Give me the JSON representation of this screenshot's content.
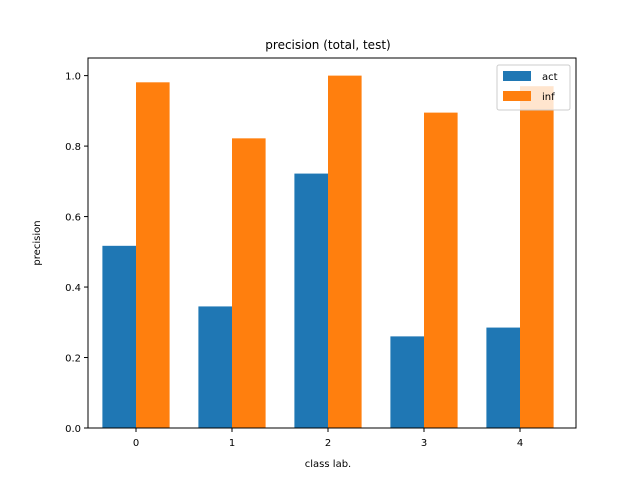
{
  "chart_data": {
    "type": "bar",
    "title": "precision (total, test)",
    "xlabel": "class lab.",
    "ylabel": "precision",
    "categories": [
      "0",
      "1",
      "2",
      "3",
      "4"
    ],
    "ylim": [
      0,
      1.05
    ],
    "yticks": [
      "0.0",
      "0.2",
      "0.4",
      "0.6",
      "0.8",
      "1.0"
    ],
    "grid": false,
    "legend_position": "top-right",
    "series": [
      {
        "name": "act",
        "color": "#1f77b4",
        "values": [
          0.517,
          0.345,
          0.722,
          0.26,
          0.285
        ]
      },
      {
        "name": "inf",
        "color": "#ff7f0e",
        "values": [
          0.981,
          0.822,
          1.0,
          0.895,
          0.97
        ]
      }
    ]
  }
}
